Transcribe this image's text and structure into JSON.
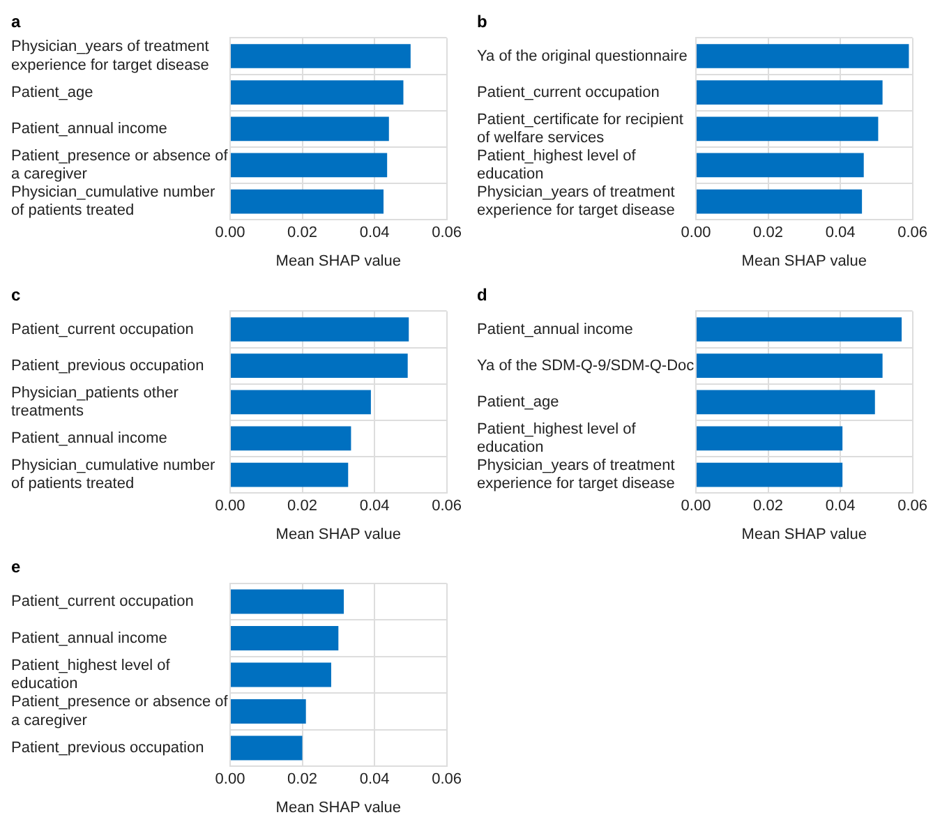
{
  "chart_data": [
    {
      "type": "bar",
      "orientation": "horizontal",
      "title": "a",
      "xlabel": "Mean SHAP value",
      "categories": [
        "Physician_years of treatment experience for target disease",
        "Patient_age",
        "Patient_annual income",
        "Patient_presence or absence of a caregiver",
        "Physician_cumulative number of patients treated"
      ],
      "values": [
        0.05,
        0.048,
        0.044,
        0.0435,
        0.0425
      ],
      "color": "#0070c0",
      "xlim": [
        0,
        0.06
      ],
      "xticks": [
        {
          "value": 0,
          "label": "0.00"
        },
        {
          "value": 0.02,
          "label": "0.02"
        },
        {
          "value": 0.04,
          "label": "0.04"
        },
        {
          "value": 0.06,
          "label": "0.06"
        }
      ],
      "grid": true
    },
    {
      "type": "bar",
      "orientation": "horizontal",
      "title": "b",
      "xlabel": "Mean SHAP value",
      "categories": [
        "Ya of the original questionnaire",
        "Patient_current occupation",
        "Patient_certificate for recipient of welfare services",
        "Patient_highest level of education",
        "Physician_years of treatment experience for target disease"
      ],
      "values": [
        0.059,
        0.0517,
        0.0505,
        0.0465,
        0.046
      ],
      "color": "#0070c0",
      "xlim": [
        0,
        0.06
      ],
      "xticks": [
        {
          "value": 0,
          "label": "0.00"
        },
        {
          "value": 0.02,
          "label": "0.02"
        },
        {
          "value": 0.04,
          "label": "0.04"
        },
        {
          "value": 0.06,
          "label": "0.06"
        }
      ],
      "grid": true
    },
    {
      "type": "bar",
      "orientation": "horizontal",
      "title": "c",
      "xlabel": "Mean SHAP value",
      "categories": [
        "Patient_current occupation",
        "Patient_previous occupation",
        "Physician_patients other treatments",
        "Patient_annual income",
        "Physician_cumulative number of patients treated"
      ],
      "values": [
        0.0495,
        0.0492,
        0.039,
        0.0335,
        0.0327
      ],
      "color": "#0070c0",
      "xlim": [
        0,
        0.06
      ],
      "xticks": [
        {
          "value": 0,
          "label": "0.00"
        },
        {
          "value": 0.02,
          "label": "0.02"
        },
        {
          "value": 0.04,
          "label": "0.04"
        },
        {
          "value": 0.06,
          "label": "0.06"
        }
      ],
      "grid": true
    },
    {
      "type": "bar",
      "orientation": "horizontal",
      "title": "d",
      "xlabel": "Mean SHAP value",
      "categories": [
        "Patient_annual income",
        "Ya of the SDM-Q-9/SDM-Q-Doc",
        "Patient_age",
        "Patient_highest level of education",
        "Physician_years of treatment experience for target disease"
      ],
      "values": [
        0.057,
        0.0517,
        0.0496,
        0.0406,
        0.0406
      ],
      "color": "#0070c0",
      "xlim": [
        0,
        0.06
      ],
      "xticks": [
        {
          "value": 0,
          "label": "0.00"
        },
        {
          "value": 0.02,
          "label": "0.02"
        },
        {
          "value": 0.04,
          "label": "0.04"
        },
        {
          "value": 0.06,
          "label": "0.06"
        }
      ],
      "grid": true
    },
    {
      "type": "bar",
      "orientation": "horizontal",
      "title": "e",
      "xlabel": "Mean SHAP value",
      "categories": [
        "Patient_current occupation",
        "Patient_annual income",
        "Patient_highest level of education",
        "Patient_presence or absence of a caregiver",
        "Patient_previous occupation"
      ],
      "values": [
        0.0315,
        0.03,
        0.028,
        0.021,
        0.02
      ],
      "color": "#0070c0",
      "xlim": [
        0,
        0.06
      ],
      "xticks": [
        {
          "value": 0,
          "label": "0.00"
        },
        {
          "value": 0.02,
          "label": "0.02"
        },
        {
          "value": 0.04,
          "label": "0.04"
        },
        {
          "value": 0.06,
          "label": "0.06"
        }
      ],
      "grid": true
    }
  ]
}
